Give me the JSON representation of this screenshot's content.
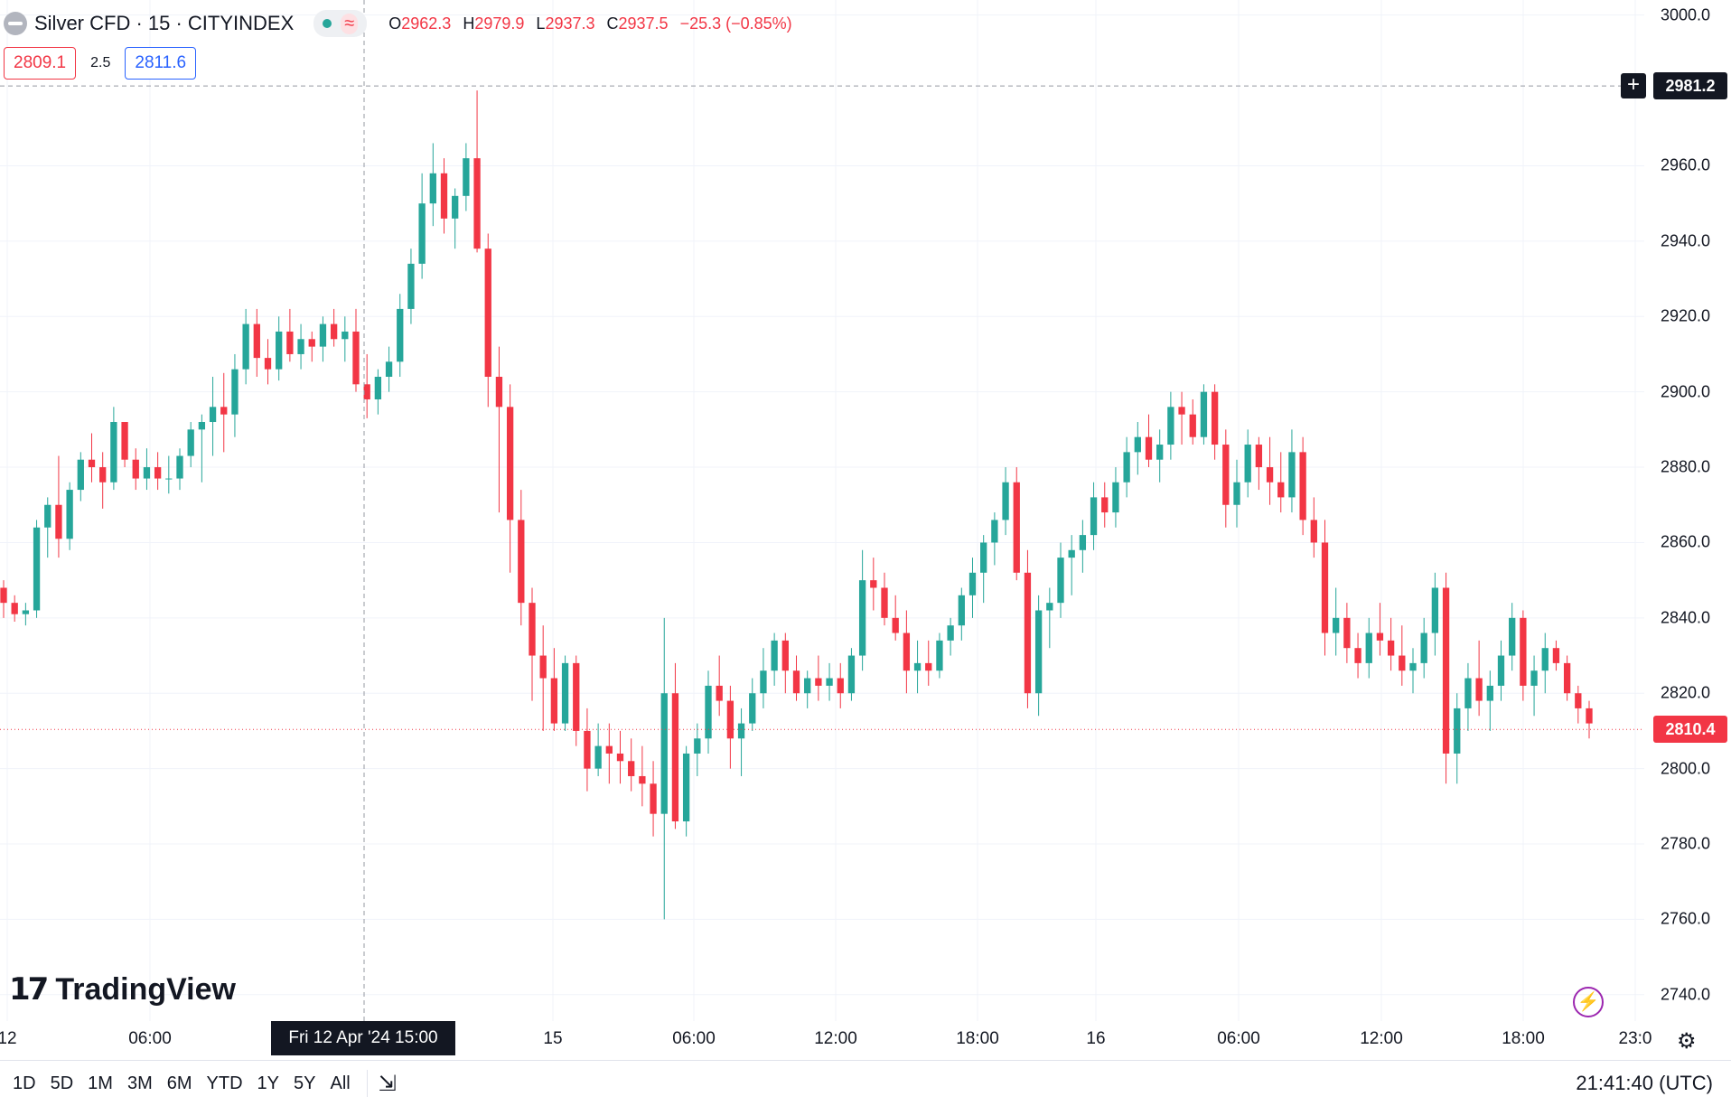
{
  "header": {
    "symbol": "Silver CFD · 15 · CITYINDEX",
    "status_wave": "≈",
    "ohlc": {
      "o_label": "O",
      "o": "2962.3",
      "h_label": "H",
      "h": "2979.9",
      "l_label": "L",
      "l": "2937.3",
      "c_label": "C",
      "c": "2937.5",
      "change": "−25.3 (−0.85%)"
    },
    "bid": "2809.1",
    "spread": "2.5",
    "ask": "2811.6"
  },
  "watermark": {
    "text": "TradingView",
    "mark": "17"
  },
  "crosshair": {
    "time_label": "Fri 12 Apr '24   15:00",
    "price_label": "2981.2",
    "add_icon": "+"
  },
  "last_price": "2810.4",
  "range_buttons": [
    "1D",
    "5D",
    "1M",
    "3M",
    "6M",
    "YTD",
    "1Y",
    "5Y",
    "All"
  ],
  "calendar_icon": "⇲",
  "clock": "21:41:40 (UTC)",
  "settings_icon": "⚙",
  "bolt_icon": "⚡",
  "colors": {
    "up": "#26a69a",
    "down": "#f23645",
    "grid": "#f0f3fa"
  },
  "chart_data": {
    "type": "candlestick",
    "interval": "15m",
    "y_axis_ticks": [
      "3000.0",
      "2960.0",
      "2940.0",
      "2920.0",
      "2900.0",
      "2880.0",
      "2860.0",
      "2840.0",
      "2820.0",
      "2800.0",
      "2780.0",
      "2760.0",
      "2740.0"
    ],
    "ylim": [
      2733,
      3004
    ],
    "x_axis_ticks": [
      "12",
      "06:00",
      "15",
      "06:00",
      "12:00",
      "18:00",
      "16",
      "06:00",
      "12:00",
      "18:00",
      "23:0"
    ],
    "candles": [
      [
        2848,
        2850,
        2840,
        2844
      ],
      [
        2844,
        2846,
        2839,
        2841
      ],
      [
        2841,
        2844,
        2838,
        2842
      ],
      [
        2842,
        2866,
        2840,
        2864
      ],
      [
        2864,
        2872,
        2856,
        2870
      ],
      [
        2870,
        2883,
        2856,
        2861
      ],
      [
        2861,
        2876,
        2858,
        2874
      ],
      [
        2874,
        2884,
        2871,
        2882
      ],
      [
        2882,
        2889,
        2876,
        2880
      ],
      [
        2880,
        2884,
        2869,
        2876
      ],
      [
        2876,
        2896,
        2874,
        2892
      ],
      [
        2892,
        2890,
        2880,
        2882
      ],
      [
        2882,
        2885,
        2874,
        2877
      ],
      [
        2877,
        2885,
        2874,
        2880
      ],
      [
        2880,
        2884,
        2874,
        2877
      ],
      [
        2877,
        2883,
        2873,
        2877
      ],
      [
        2877,
        2885,
        2874,
        2883
      ],
      [
        2883,
        2892,
        2880,
        2890
      ],
      [
        2890,
        2894,
        2876,
        2892
      ],
      [
        2892,
        2904,
        2883,
        2896
      ],
      [
        2896,
        2905,
        2884,
        2894
      ],
      [
        2894,
        2910,
        2888,
        2906
      ],
      [
        2906,
        2922,
        2902,
        2918
      ],
      [
        2918,
        2922,
        2904,
        2909
      ],
      [
        2909,
        2914,
        2902,
        2906
      ],
      [
        2906,
        2920,
        2903,
        2916
      ],
      [
        2916,
        2922,
        2908,
        2910
      ],
      [
        2910,
        2918,
        2906,
        2914
      ],
      [
        2914,
        2916,
        2908,
        2912
      ],
      [
        2912,
        2920,
        2908,
        2918
      ],
      [
        2918,
        2922,
        2912,
        2914
      ],
      [
        2914,
        2920,
        2908,
        2916
      ],
      [
        2916,
        2922,
        2900,
        2902
      ],
      [
        2902,
        2910,
        2893,
        2898
      ],
      [
        2898,
        2906,
        2894,
        2904
      ],
      [
        2904,
        2912,
        2900,
        2908
      ],
      [
        2908,
        2926,
        2904,
        2922
      ],
      [
        2922,
        2938,
        2918,
        2934
      ],
      [
        2934,
        2958,
        2930,
        2950
      ],
      [
        2950,
        2966,
        2944,
        2958
      ],
      [
        2958,
        2962,
        2942,
        2946
      ],
      [
        2946,
        2954,
        2938,
        2952
      ],
      [
        2952,
        2966,
        2948,
        2962
      ],
      [
        2962,
        2980,
        2937,
        2938
      ],
      [
        2938,
        2942,
        2896,
        2904
      ],
      [
        2904,
        2912,
        2868,
        2896
      ],
      [
        2896,
        2902,
        2852,
        2866
      ],
      [
        2866,
        2874,
        2838,
        2844
      ],
      [
        2844,
        2848,
        2818,
        2830
      ],
      [
        2830,
        2838,
        2810,
        2824
      ],
      [
        2824,
        2832,
        2810,
        2812
      ],
      [
        2812,
        2830,
        2810,
        2828
      ],
      [
        2828,
        2830,
        2806,
        2810
      ],
      [
        2810,
        2816,
        2794,
        2800
      ],
      [
        2800,
        2812,
        2798,
        2806
      ],
      [
        2806,
        2812,
        2796,
        2804
      ],
      [
        2804,
        2810,
        2796,
        2802
      ],
      [
        2802,
        2808,
        2794,
        2798
      ],
      [
        2798,
        2806,
        2790,
        2796
      ],
      [
        2796,
        2802,
        2782,
        2788
      ],
      [
        2788,
        2840,
        2760,
        2820
      ],
      [
        2820,
        2828,
        2784,
        2786
      ],
      [
        2786,
        2806,
        2782,
        2804
      ],
      [
        2804,
        2812,
        2798,
        2808
      ],
      [
        2808,
        2826,
        2804,
        2822
      ],
      [
        2822,
        2830,
        2814,
        2818
      ],
      [
        2818,
        2822,
        2800,
        2808
      ],
      [
        2808,
        2816,
        2798,
        2812
      ],
      [
        2812,
        2824,
        2810,
        2820
      ],
      [
        2820,
        2832,
        2816,
        2826
      ],
      [
        2826,
        2836,
        2822,
        2834
      ],
      [
        2834,
        2836,
        2820,
        2826
      ],
      [
        2826,
        2830,
        2818,
        2820
      ],
      [
        2820,
        2826,
        2816,
        2824
      ],
      [
        2824,
        2830,
        2818,
        2822
      ],
      [
        2822,
        2828,
        2818,
        2824
      ],
      [
        2824,
        2828,
        2816,
        2820
      ],
      [
        2820,
        2832,
        2818,
        2830
      ],
      [
        2830,
        2858,
        2826,
        2850
      ],
      [
        2850,
        2856,
        2842,
        2848
      ],
      [
        2848,
        2852,
        2838,
        2840
      ],
      [
        2840,
        2846,
        2834,
        2836
      ],
      [
        2836,
        2842,
        2820,
        2826
      ],
      [
        2826,
        2834,
        2820,
        2828
      ],
      [
        2828,
        2834,
        2822,
        2826
      ],
      [
        2826,
        2836,
        2824,
        2834
      ],
      [
        2834,
        2840,
        2830,
        2838
      ],
      [
        2838,
        2848,
        2834,
        2846
      ],
      [
        2846,
        2856,
        2840,
        2852
      ],
      [
        2852,
        2862,
        2844,
        2860
      ],
      [
        2860,
        2868,
        2854,
        2866
      ],
      [
        2866,
        2880,
        2862,
        2876
      ],
      [
        2876,
        2880,
        2850,
        2852
      ],
      [
        2852,
        2858,
        2816,
        2820
      ],
      [
        2820,
        2846,
        2814,
        2842
      ],
      [
        2842,
        2848,
        2832,
        2844
      ],
      [
        2844,
        2860,
        2840,
        2856
      ],
      [
        2856,
        2862,
        2846,
        2858
      ],
      [
        2858,
        2866,
        2852,
        2862
      ],
      [
        2862,
        2876,
        2858,
        2872
      ],
      [
        2872,
        2876,
        2864,
        2868
      ],
      [
        2868,
        2880,
        2864,
        2876
      ],
      [
        2876,
        2888,
        2872,
        2884
      ],
      [
        2884,
        2892,
        2878,
        2888
      ],
      [
        2888,
        2894,
        2880,
        2882
      ],
      [
        2882,
        2890,
        2876,
        2886
      ],
      [
        2886,
        2900,
        2882,
        2896
      ],
      [
        2896,
        2900,
        2886,
        2894
      ],
      [
        2894,
        2898,
        2886,
        2888
      ],
      [
        2888,
        2902,
        2886,
        2900
      ],
      [
        2900,
        2902,
        2882,
        2886
      ],
      [
        2886,
        2890,
        2864,
        2870
      ],
      [
        2870,
        2882,
        2864,
        2876
      ],
      [
        2876,
        2890,
        2872,
        2886
      ],
      [
        2886,
        2888,
        2874,
        2880
      ],
      [
        2880,
        2888,
        2870,
        2876
      ],
      [
        2876,
        2884,
        2868,
        2872
      ],
      [
        2872,
        2890,
        2868,
        2884
      ],
      [
        2884,
        2888,
        2862,
        2866
      ],
      [
        2866,
        2872,
        2856,
        2860
      ],
      [
        2860,
        2866,
        2830,
        2836
      ],
      [
        2836,
        2848,
        2830,
        2840
      ],
      [
        2840,
        2844,
        2828,
        2832
      ],
      [
        2832,
        2836,
        2824,
        2828
      ],
      [
        2828,
        2840,
        2824,
        2836
      ],
      [
        2836,
        2844,
        2830,
        2834
      ],
      [
        2834,
        2840,
        2826,
        2830
      ],
      [
        2830,
        2838,
        2822,
        2826
      ],
      [
        2826,
        2832,
        2820,
        2828
      ],
      [
        2828,
        2840,
        2824,
        2836
      ],
      [
        2836,
        2852,
        2830,
        2848
      ],
      [
        2848,
        2852,
        2796,
        2804
      ],
      [
        2804,
        2820,
        2796,
        2816
      ],
      [
        2816,
        2828,
        2810,
        2824
      ],
      [
        2824,
        2834,
        2814,
        2818
      ],
      [
        2818,
        2826,
        2810,
        2822
      ],
      [
        2822,
        2834,
        2818,
        2830
      ],
      [
        2830,
        2844,
        2826,
        2840
      ],
      [
        2840,
        2842,
        2818,
        2822
      ],
      [
        2822,
        2830,
        2814,
        2826
      ],
      [
        2826,
        2836,
        2820,
        2832
      ],
      [
        2832,
        2834,
        2826,
        2828
      ],
      [
        2828,
        2830,
        2818,
        2820
      ],
      [
        2820,
        2822,
        2812,
        2816
      ],
      [
        2816,
        2818,
        2808,
        2812
      ]
    ]
  }
}
